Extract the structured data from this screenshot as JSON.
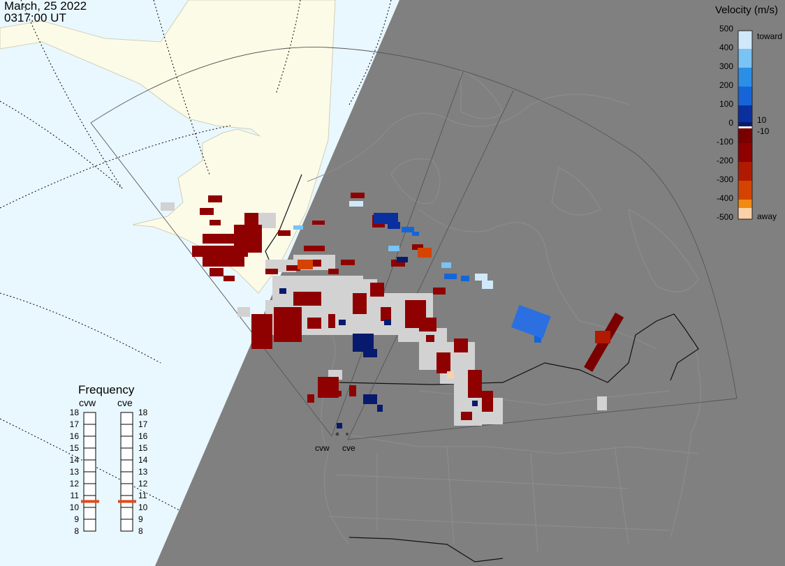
{
  "header": {
    "date": "March, 25 2022",
    "time": "0317:00 UT"
  },
  "velocity_scale": {
    "title": "Velocity (m/s)",
    "ticks": [
      "500",
      "400",
      "300",
      "200",
      "100",
      "0",
      "-100",
      "-200",
      "-300",
      "-400",
      "-500"
    ],
    "side_labels": {
      "toward": "toward",
      "ten": "10",
      "minus_ten": "-10",
      "away": "away"
    },
    "colors": [
      "#cfe9fb",
      "#79c3f5",
      "#2b8fe6",
      "#1565d8",
      "#0a2f9e",
      "#081a6e",
      "#7a0000",
      "#8f0000",
      "#b01a00",
      "#d44400",
      "#f08a10",
      "#fbd2a8"
    ]
  },
  "frequency_panel": {
    "title": "Frequency",
    "radars": [
      "cvw",
      "cve"
    ],
    "ticks": [
      "18",
      "17",
      "16",
      "15",
      "14",
      "13",
      "12",
      "11",
      "10",
      "9",
      "8"
    ],
    "cvw_frequency_mhz": 10.5,
    "cve_frequency_mhz": 10.5,
    "marker_color": "#e04a1a"
  },
  "radar_sites": [
    "cvw",
    "cve"
  ],
  "map_colors": {
    "ocean": "#e9f7ff",
    "land": "#fcfbe8",
    "night": "#808080",
    "outline": "#555555"
  }
}
